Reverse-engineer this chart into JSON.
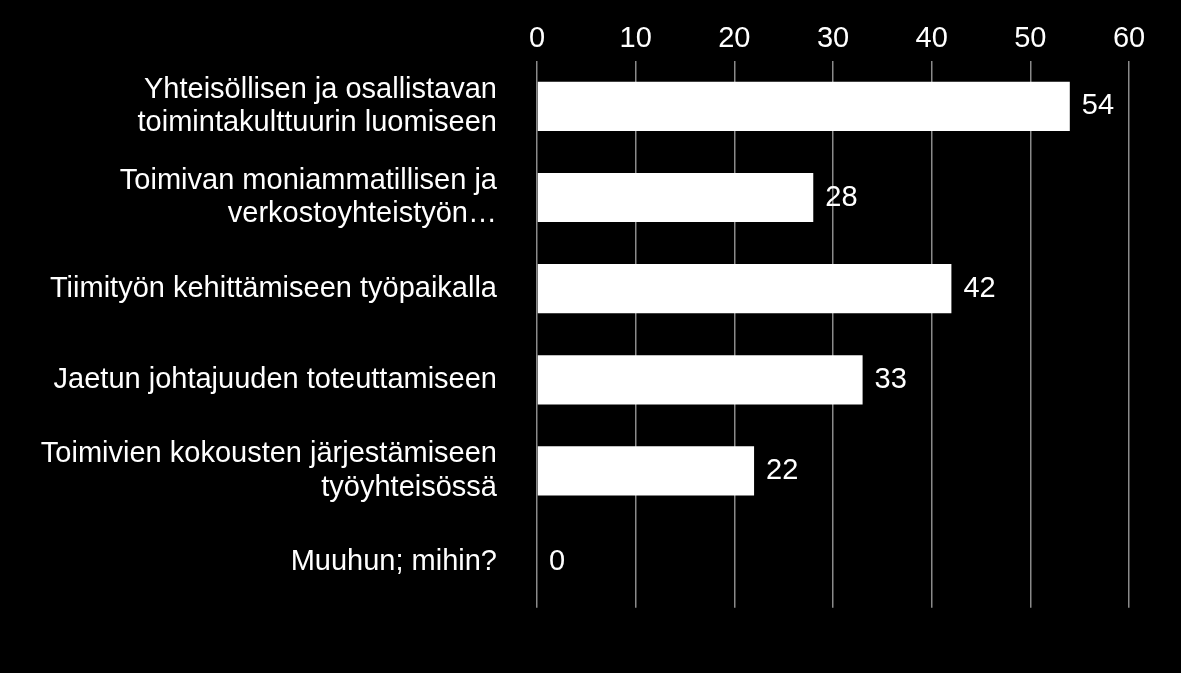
{
  "chart_data": {
    "type": "bar",
    "orientation": "horizontal",
    "categories": [
      "Yhteisöllisen ja osallistavan toimintakulttuurin luomiseen",
      "Toimivan moniammatillisen ja verkostoyhteistyön…",
      "Tiimityön kehittämiseen työpaikalla",
      "Jaetun johtajuuden toteuttamiseen",
      "Toimivien kokousten järjestämiseen työyhteisössä",
      "Muuhun; mihin?"
    ],
    "values": [
      54,
      28,
      42,
      33,
      22,
      0
    ],
    "color": "#ffffff",
    "xlim": [
      0,
      60
    ],
    "xticks": [
      0,
      10,
      20,
      30,
      40,
      50,
      60
    ],
    "grid": "x",
    "legend": false,
    "data_labels": true
  }
}
